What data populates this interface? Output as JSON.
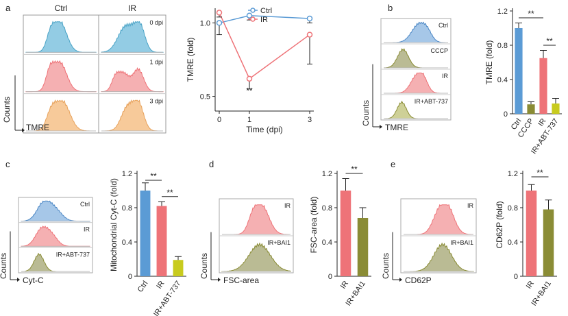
{
  "colors": {
    "blue": "#5b9bd5",
    "blue_fill": "#87c6e1",
    "red": "#ee7378",
    "red_fill": "#ef8d92",
    "orange_fill": "#f6c48f",
    "olive": "#8a8c35",
    "olive_fill": "#b3b488",
    "yellow": "#c8cb1e",
    "pink_fill": "#f4a7aa",
    "gray": "#9a9a9a"
  },
  "panels": {
    "a": {
      "label": "a",
      "hist": {
        "col_labels": [
          "Ctrl",
          "IR"
        ],
        "row_labels": [
          "0 dpi",
          "1 dpi",
          "3 dpi"
        ],
        "ylabel": "Counts",
        "xlabel": "TMRE"
      }
    },
    "b": {
      "label": "b",
      "hist": {
        "row_labels": [
          "Ctrl",
          "CCCP",
          "IR",
          "IR+ABT-737"
        ],
        "ylabel": "Counts",
        "xlabel": "TMRE"
      }
    },
    "c": {
      "label": "c",
      "hist": {
        "row_labels": [
          "Ctrl",
          "IR",
          "IR+ABT-737"
        ],
        "ylabel": "Counts",
        "xlabel": "Cyt-C"
      }
    },
    "d": {
      "label": "d",
      "hist": {
        "row_labels": [
          "IR",
          "IR+BAI1"
        ],
        "ylabel": "Counts",
        "xlabel": "FSC-area"
      }
    },
    "e": {
      "label": "e",
      "hist": {
        "row_labels": [
          "IR",
          "IR+BAI1"
        ],
        "ylabel": "Counts",
        "xlabel": "CD62P"
      }
    }
  },
  "chart_data": [
    {
      "id": "a-line",
      "type": "line",
      "x": [
        0,
        1,
        3
      ],
      "xticks": [
        "0",
        "1",
        "3"
      ],
      "xlabel": "Time (dpi)",
      "ylabel": "TMRE (fold)",
      "ylim": [
        0.4,
        1.1
      ],
      "yticks": [
        "0.5",
        "1.0"
      ],
      "legend": [
        "Ctrl",
        "IR"
      ],
      "series": [
        {
          "name": "Ctrl",
          "values": [
            1.0,
            1.05,
            1.03
          ],
          "err": [
            0.08,
            0.03,
            0.03
          ]
        },
        {
          "name": "IR",
          "values": [
            1.07,
            0.62,
            0.92
          ],
          "err": [
            0.03,
            0.07,
            0.2
          ]
        }
      ],
      "annotations": [
        {
          "text": "**"
        }
      ]
    },
    {
      "id": "b-bar",
      "type": "bar",
      "categories": [
        "Ctrl",
        "CCCP",
        "IR",
        "IR+ABT-737"
      ],
      "values": [
        1.0,
        0.11,
        0.65,
        0.12
      ],
      "err": [
        0.06,
        0.03,
        0.09,
        0.06
      ],
      "ylabel": "TMRE (fold)",
      "ylim": [
        0,
        1.2
      ],
      "yticks": [
        "0",
        "0.4",
        "0.8",
        "1.2"
      ],
      "annotations": [
        {
          "text": "**"
        },
        {
          "text": "**"
        }
      ]
    },
    {
      "id": "c-bar",
      "type": "bar",
      "categories": [
        "Ctrl",
        "IR",
        "IR+ABT-737"
      ],
      "values": [
        1.0,
        0.82,
        0.19
      ],
      "err": [
        0.09,
        0.05,
        0.04
      ],
      "ylabel": "Mitochondrial Cyt-C (fold)",
      "ylim": [
        0,
        1.2
      ],
      "yticks": [
        "0",
        "0.4",
        "0.8",
        "1.2"
      ],
      "annotations": [
        {
          "text": "**"
        },
        {
          "text": "**"
        }
      ]
    },
    {
      "id": "d-bar",
      "type": "bar",
      "categories": [
        "IR",
        "IR+BAI1"
      ],
      "values": [
        1.0,
        0.68
      ],
      "err": [
        0.14,
        0.12
      ],
      "ylabel": "FSC-area (fold)",
      "ylim": [
        0,
        1.2
      ],
      "yticks": [
        "0",
        "0.4",
        "0.8",
        "1.2"
      ],
      "annotations": [
        {
          "text": "**"
        }
      ]
    },
    {
      "id": "e-bar",
      "type": "bar",
      "categories": [
        "IR",
        "IR+BAI1"
      ],
      "values": [
        1.0,
        0.78
      ],
      "err": [
        0.07,
        0.11
      ],
      "ylabel": "CD62P (fold)",
      "ylim": [
        0,
        1.2
      ],
      "yticks": [
        "0",
        "0.4",
        "0.8",
        "1.2"
      ],
      "annotations": [
        {
          "text": "**"
        }
      ]
    }
  ]
}
